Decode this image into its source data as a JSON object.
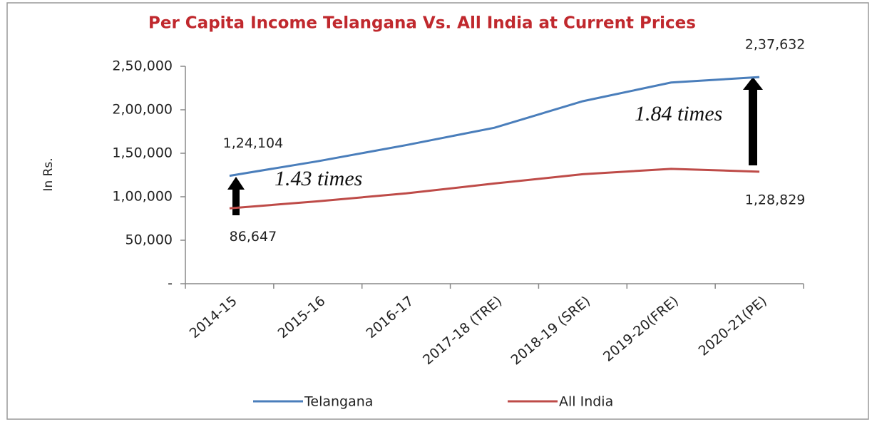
{
  "chart_data": {
    "type": "line",
    "title": "Per Capita Income Telangana Vs. All India at Current Prices",
    "y_label": "In Rs.",
    "categories": [
      "2014-15",
      "2015-16",
      "2016-17",
      "2017-18 (TRE)",
      "2018-19 (SRE)",
      "2019-20(FRE)",
      "2020-21(PE)"
    ],
    "series": [
      {
        "name": "Telangana",
        "color": "#4a7ebb",
        "values": [
          124104,
          140840,
          159395,
          179358,
          209848,
          231326,
          237632
        ],
        "value_labels": [
          "1,24,104",
          null,
          null,
          null,
          null,
          null,
          "2,37,632"
        ]
      },
      {
        "name": "All India",
        "color": "#be4b48",
        "values": [
          86647,
          94797,
          103870,
          115224,
          125883,
          132115,
          128829
        ],
        "value_labels": [
          "86,647",
          null,
          null,
          null,
          null,
          null,
          "1,28,829"
        ]
      }
    ],
    "annotations": [
      "1.43 times",
      "1.84 times"
    ],
    "ylim": [
      0,
      250000
    ],
    "yticks": [
      {
        "value": 0,
        "label": "-"
      },
      {
        "value": 50000,
        "label": "50,000"
      },
      {
        "value": 100000,
        "label": "1,00,000"
      },
      {
        "value": 150000,
        "label": "1,50,000"
      },
      {
        "value": 200000,
        "label": "2,00,000"
      },
      {
        "value": 250000,
        "label": "2,50,000"
      }
    ],
    "legend": "bottom"
  }
}
